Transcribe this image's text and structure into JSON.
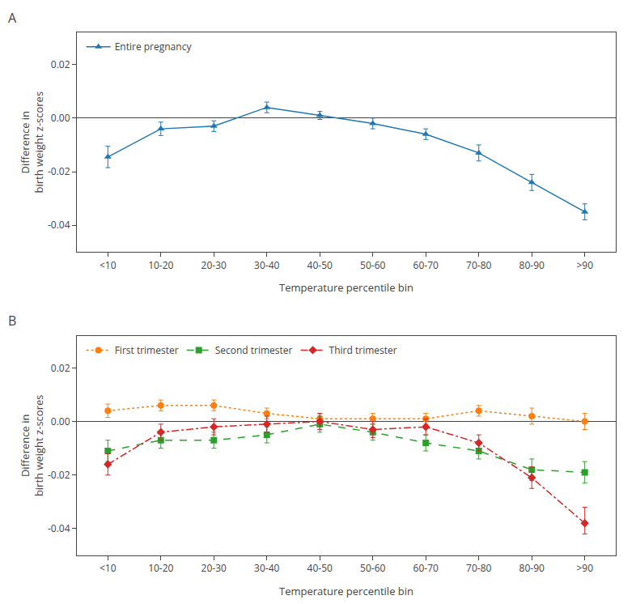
{
  "chart_data": [
    {
      "type": "line",
      "categories": [
        "<10",
        "10-20",
        "20-30",
        "30-40",
        "40-50",
        "50-60",
        "60-70",
        "70-80",
        "80-90",
        ">90"
      ],
      "series": [
        {
          "name": "Entire pregnancy",
          "marker": "triangle-up",
          "line_style": "solid",
          "values": [
            -0.0145,
            -0.004,
            -0.003,
            0.004,
            0.001,
            -0.002,
            -0.006,
            -0.013,
            -0.024,
            -0.035
          ],
          "yerr_lo": [
            0.004,
            0.0025,
            0.002,
            0.002,
            0.0015,
            0.002,
            0.002,
            0.003,
            0.003,
            0.003
          ],
          "yerr_hi": [
            0.004,
            0.0025,
            0.002,
            0.002,
            0.0015,
            0.002,
            0.002,
            0.003,
            0.003,
            0.003
          ]
        }
      ],
      "xlabel": "Temperature percentile bin",
      "ylabel": "Difference in\nbirth weight z-scores",
      "ylim": [
        -0.05,
        0.032
      ],
      "yticks": [
        -0.04,
        -0.02,
        {
          "value": 0.0,
          "label": "0.00"
        },
        0.02
      ],
      "grid": false,
      "legend": "upper left",
      "annotations": [
        {
          "text": "A"
        }
      ]
    },
    {
      "type": "line",
      "categories": [
        "<10",
        "10-20",
        "20-30",
        "30-40",
        "40-50",
        "50-60",
        "60-70",
        "70-80",
        "80-90",
        ">90"
      ],
      "series": [
        {
          "name": "First trimester",
          "marker": "circle",
          "line_style": "dotted",
          "values": [
            0.004,
            0.006,
            0.006,
            0.003,
            0.001,
            0.001,
            0.001,
            0.004,
            0.002,
            0.0
          ],
          "yerr_lo": [
            0.0025,
            0.002,
            0.002,
            0.002,
            0.002,
            0.002,
            0.002,
            0.002,
            0.003,
            0.003
          ],
          "yerr_hi": [
            0.0025,
            0.002,
            0.002,
            0.002,
            0.002,
            0.002,
            0.002,
            0.002,
            0.003,
            0.003
          ]
        },
        {
          "name": "Second trimester",
          "marker": "square",
          "line_style": "dashed",
          "values": [
            -0.011,
            -0.007,
            -0.007,
            -0.005,
            -0.001,
            -0.004,
            -0.008,
            -0.011,
            -0.018,
            -0.019
          ],
          "yerr_lo": [
            0.004,
            0.003,
            0.003,
            0.003,
            0.003,
            0.003,
            0.003,
            0.003,
            0.004,
            0.004
          ],
          "yerr_hi": [
            0.004,
            0.003,
            0.003,
            0.003,
            0.003,
            0.003,
            0.003,
            0.003,
            0.004,
            0.004
          ]
        },
        {
          "name": "Third trimester",
          "marker": "diamond",
          "line_style": "dashdot",
          "values": [
            -0.016,
            -0.004,
            -0.002,
            -0.001,
            0.0,
            -0.003,
            -0.002,
            -0.008,
            -0.021,
            -0.038
          ],
          "yerr_lo": [
            0.004,
            0.003,
            0.003,
            0.003,
            0.003,
            0.003,
            0.003,
            0.003,
            0.004,
            0.004
          ],
          "yerr_hi": [
            0.004,
            0.003,
            0.003,
            0.003,
            0.003,
            0.003,
            0.003,
            0.003,
            0.004,
            0.006
          ]
        }
      ],
      "xlabel": "Temperature percentile bin",
      "ylabel": "Difference in\nbirth weight z-scores",
      "ylim": [
        -0.05,
        0.032
      ],
      "yticks": [
        -0.04,
        -0.02,
        {
          "value": 0.0,
          "label": "0.00"
        },
        0.02
      ],
      "grid": false,
      "legend": "upper left",
      "annotations": [
        {
          "text": "B"
        }
      ]
    }
  ]
}
